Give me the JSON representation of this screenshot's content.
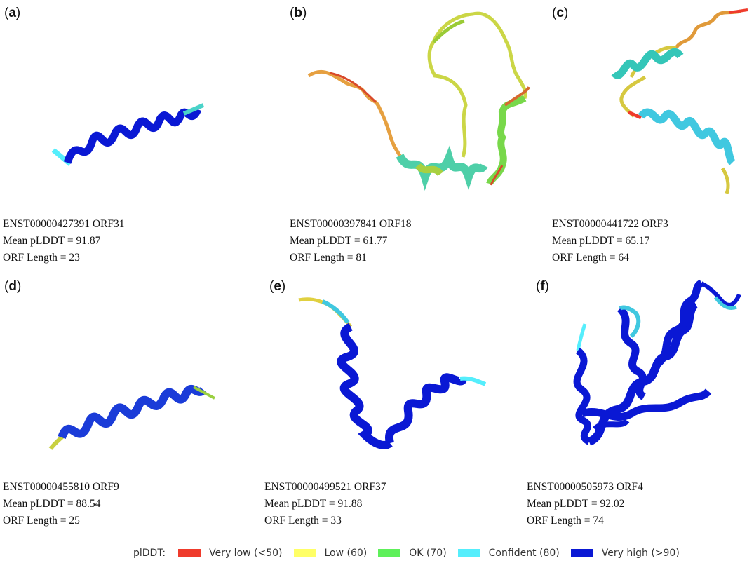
{
  "panels": [
    {
      "letter": "a",
      "id": "ENST00000427391 ORF31",
      "mean": "Mean pLDDT = 91.87",
      "length": "ORF Length = 23"
    },
    {
      "letter": "b",
      "id": "ENST00000397841 ORF18",
      "mean": "Mean pLDDT = 61.77",
      "length": "ORF Length = 81"
    },
    {
      "letter": "c",
      "id": "ENST00000441722 ORF3",
      "mean": "Mean pLDDT = 65.17",
      "length": "ORF Length = 64"
    },
    {
      "letter": "d",
      "id": "ENST00000455810 ORF9",
      "mean": "Mean pLDDT = 88.54",
      "length": "ORF Length = 25"
    },
    {
      "letter": "e",
      "id": "ENST00000499521 ORF37",
      "mean": "Mean pLDDT = 91.88",
      "length": "ORF Length = 33"
    },
    {
      "letter": "f",
      "id": "ENST00000505973 ORF4",
      "mean": "Mean pLDDT = 92.02",
      "length": "ORF Length = 74"
    }
  ],
  "legend": {
    "title": "plDDT:",
    "items": [
      {
        "label": "Very low (<50)",
        "color": "#ef3b2c"
      },
      {
        "label": "Low (60)",
        "color": "#ffff66"
      },
      {
        "label": "OK (70)",
        "color": "#5ef05a"
      },
      {
        "label": "Confident (80)",
        "color": "#55eefc"
      },
      {
        "label": "Very high (>90)",
        "color": "#0a18d4"
      }
    ]
  },
  "colors": {
    "very_low": "#ef3b2c",
    "low": "#ffff66",
    "ok": "#5ef05a",
    "confident": "#55eefc",
    "very_high": "#0a18d4"
  }
}
